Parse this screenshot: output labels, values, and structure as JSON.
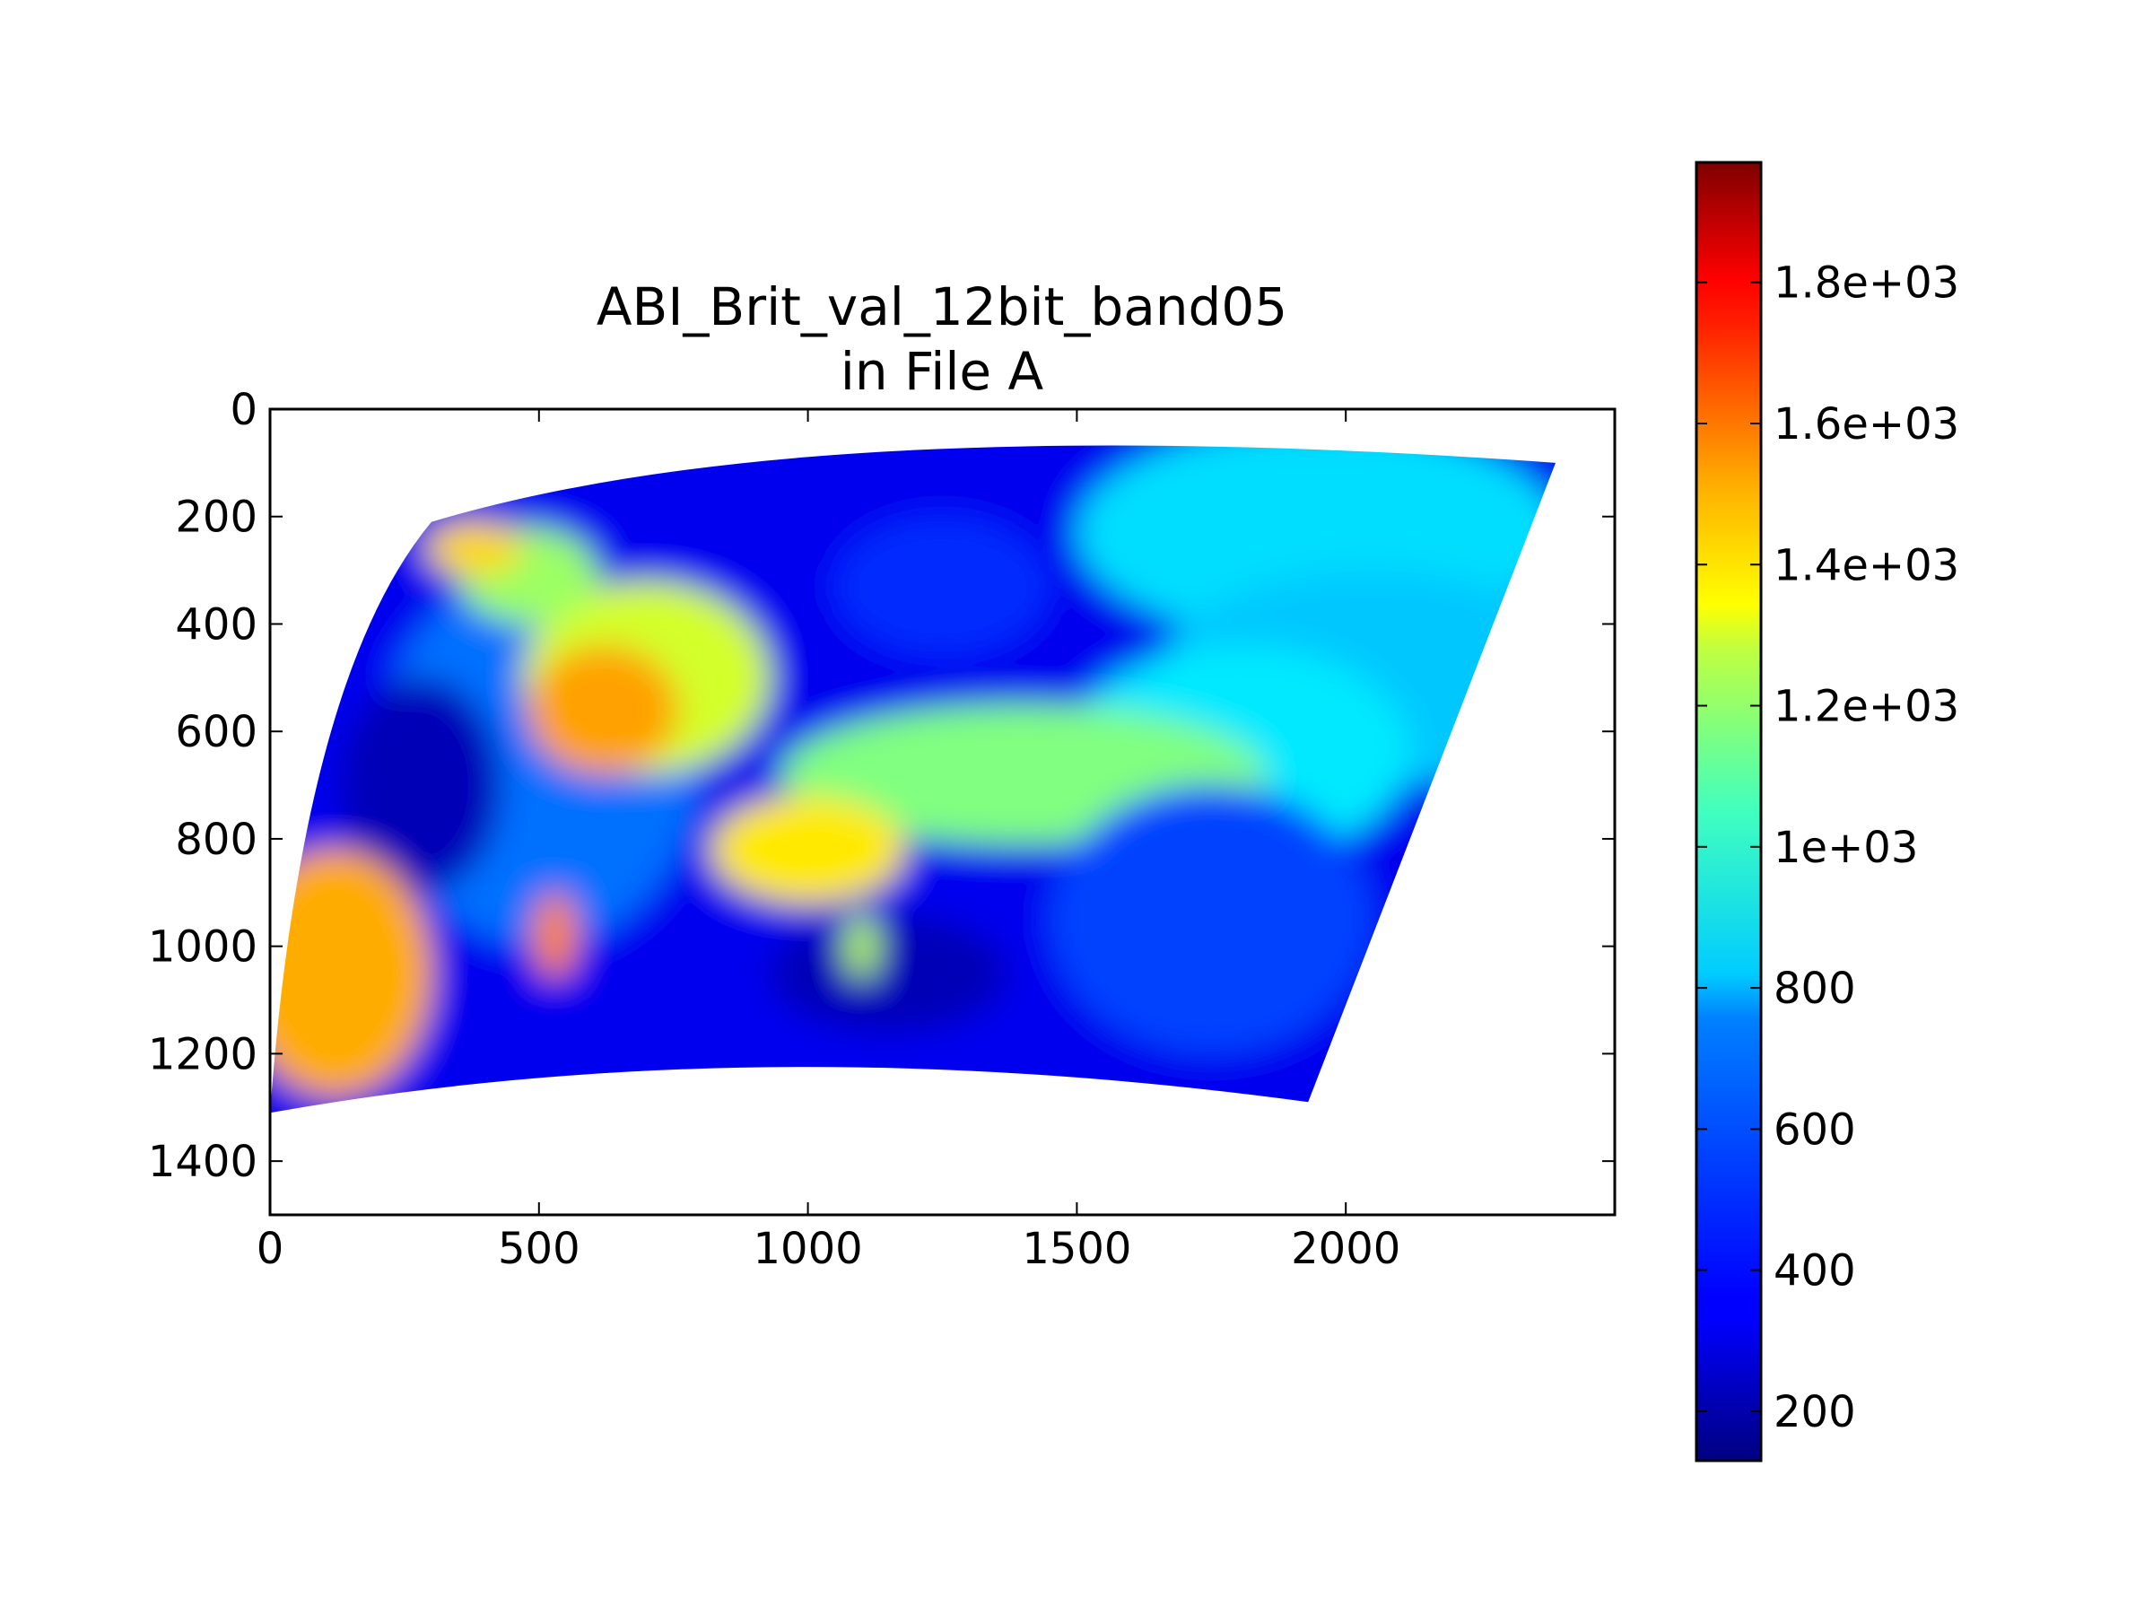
{
  "chart_data": {
    "type": "heatmap",
    "title": "ABI_Brit_val_12bit_band05",
    "subtitle": "in File A",
    "xlabel": "",
    "ylabel": "",
    "xlim": [
      0,
      2500
    ],
    "ylim": [
      1500,
      0
    ],
    "x_ticks": [
      0,
      500,
      1000,
      1500,
      2000
    ],
    "x_tick_labels": [
      "0",
      "500",
      "1000",
      "1500",
      "2000"
    ],
    "y_ticks": [
      0,
      200,
      400,
      600,
      800,
      1000,
      1200,
      1400
    ],
    "y_tick_labels": [
      "0",
      "200",
      "400",
      "600",
      "800",
      "1000",
      "1200",
      "1400"
    ],
    "colormap": "jet",
    "colorbar": {
      "range": [
        130,
        1970
      ],
      "ticks": [
        200,
        400,
        600,
        800,
        1000,
        1200,
        1400,
        1600,
        1800
      ],
      "tick_labels": [
        "200",
        "400",
        "600",
        "800",
        "1e+03",
        "1.2e+03",
        "1.4e+03",
        "1.6e+03",
        "1.8e+03"
      ],
      "placement": "right"
    },
    "data_footprint": {
      "top_left": [
        300,
        210
      ],
      "top_center": [
        1000,
        0
      ],
      "top_right": [
        2390,
        100
      ],
      "bottom_right": [
        1930,
        1290
      ],
      "bottom_center": [
        900,
        1150
      ],
      "bottom_left": [
        0,
        1310
      ]
    },
    "regions": [
      {
        "name": "background",
        "x": 1200,
        "y": 600,
        "rx": 2000,
        "ry": 1200,
        "value": 330
      },
      {
        "name": "continent",
        "x": 500,
        "y": 650,
        "rx": 300,
        "ry": 350,
        "value": 560
      },
      {
        "name": "north-cloud",
        "x": 1950,
        "y": 230,
        "rx": 450,
        "ry": 200,
        "value": 760
      },
      {
        "name": "east-cloud",
        "x": 2050,
        "y": 500,
        "rx": 400,
        "ry": 200,
        "value": 720
      },
      {
        "name": "east-cloud-sw",
        "x": 1800,
        "y": 640,
        "rx": 320,
        "ry": 200,
        "value": 780
      },
      {
        "name": "central-band",
        "x": 1400,
        "y": 680,
        "rx": 450,
        "ry": 130,
        "value": 1050
      },
      {
        "name": "band-sw",
        "x": 1000,
        "y": 820,
        "rx": 180,
        "ry": 100,
        "value": 1320
      },
      {
        "name": "plains",
        "x": 700,
        "y": 500,
        "rx": 230,
        "ry": 180,
        "value": 1200
      },
      {
        "name": "plains-hot",
        "x": 620,
        "y": 560,
        "rx": 140,
        "ry": 120,
        "value": 1450
      },
      {
        "name": "west-coast",
        "x": 480,
        "y": 310,
        "rx": 130,
        "ry": 90,
        "value": 1100
      },
      {
        "name": "nw-strip",
        "x": 380,
        "y": 260,
        "rx": 90,
        "ry": 50,
        "value": 1350
      },
      {
        "name": "gulf",
        "x": 1150,
        "y": 1050,
        "rx": 220,
        "ry": 110,
        "value": 230
      },
      {
        "name": "pacific",
        "x": 280,
        "y": 700,
        "rx": 150,
        "ry": 200,
        "value": 230
      },
      {
        "name": "sw-clouds",
        "x": 120,
        "y": 1050,
        "rx": 180,
        "ry": 230,
        "value": 1430
      },
      {
        "name": "mexico-strip",
        "x": 530,
        "y": 980,
        "rx": 40,
        "ry": 80,
        "value": 1500
      },
      {
        "name": "florida",
        "x": 1100,
        "y": 1000,
        "rx": 30,
        "ry": 60,
        "value": 1150
      },
      {
        "name": "atlantic-se",
        "x": 1750,
        "y": 950,
        "rx": 300,
        "ry": 250,
        "value": 480
      },
      {
        "name": "hudson",
        "x": 1250,
        "y": 330,
        "rx": 200,
        "ry": 130,
        "value": 440
      }
    ]
  }
}
